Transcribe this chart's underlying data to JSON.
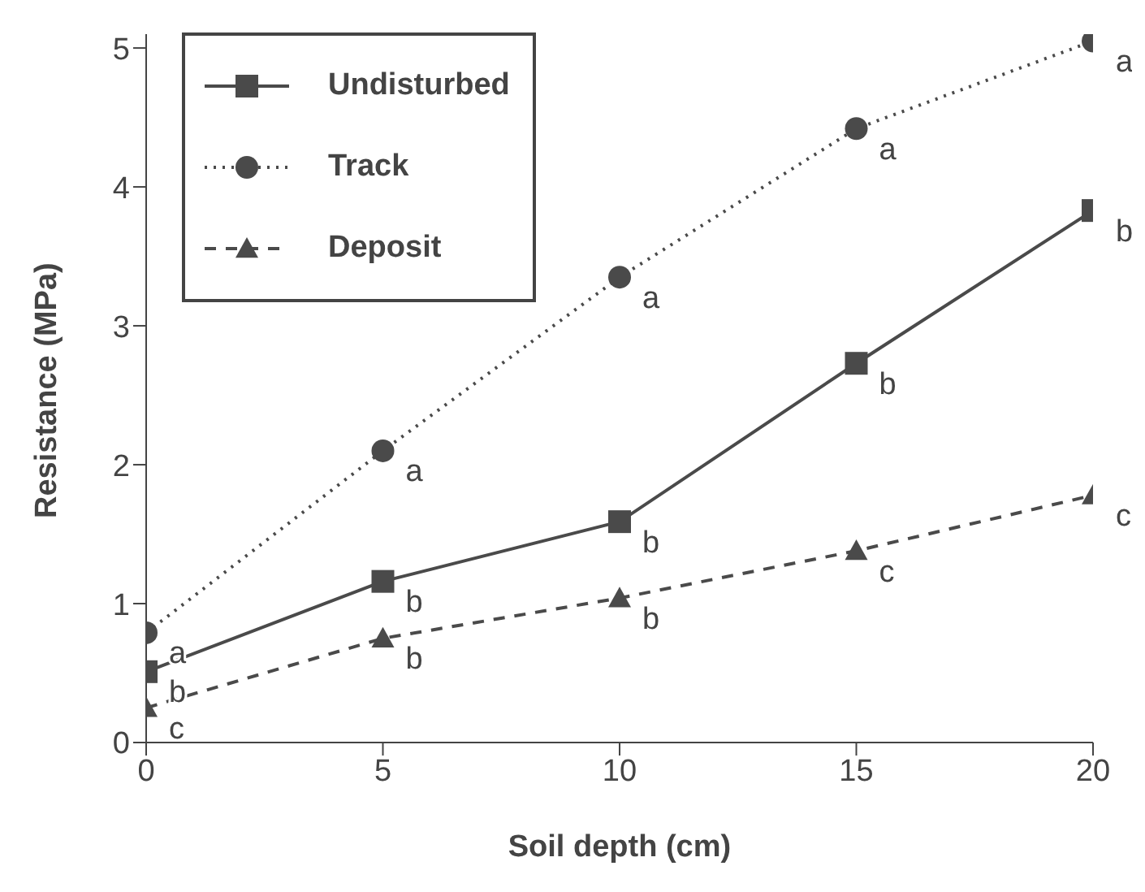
{
  "chart_data": {
    "type": "line",
    "xlabel": "Soil depth (cm)",
    "ylabel": "Resistance (MPa)",
    "x": [
      0,
      5,
      10,
      15,
      20
    ],
    "series": [
      {
        "name": "Undisturbed",
        "color": "#4a4a4a",
        "marker": "square",
        "line_style": "solid",
        "values": [
          0.51,
          1.16,
          1.59,
          2.73,
          3.83
        ]
      },
      {
        "name": "Track",
        "color": "#4a4a4a",
        "marker": "circle",
        "line_style": "dotted",
        "values": [
          0.79,
          2.1,
          3.35,
          4.42,
          5.05
        ]
      },
      {
        "name": "Deposit",
        "color": "#4a4a4a",
        "marker": "triangle",
        "line_style": "dashed",
        "values": [
          0.25,
          0.75,
          1.04,
          1.38,
          1.78
        ]
      }
    ],
    "xlim": [
      0,
      20
    ],
    "xticks": [
      0,
      5,
      10,
      15,
      20
    ],
    "ylim": [
      0,
      5.1
    ],
    "yticks": [
      0,
      1,
      2,
      3,
      4,
      5
    ],
    "grid": false,
    "legend": "top left",
    "annotations": [
      {
        "text": "b",
        "x": 0,
        "y": 0.51
      },
      {
        "text": "b",
        "x": 5,
        "y": 1.16
      },
      {
        "text": "b",
        "x": 10,
        "y": 1.59
      },
      {
        "text": "b",
        "x": 15,
        "y": 2.73
      },
      {
        "text": "b",
        "x": 20,
        "y": 3.83
      },
      {
        "text": "a",
        "x": 0,
        "y": 0.79
      },
      {
        "text": "a",
        "x": 5,
        "y": 2.1
      },
      {
        "text": "a",
        "x": 10,
        "y": 3.35
      },
      {
        "text": "a",
        "x": 15,
        "y": 4.42
      },
      {
        "text": "a",
        "x": 20,
        "y": 5.05
      },
      {
        "text": "c",
        "x": 0,
        "y": 0.25
      },
      {
        "text": "b",
        "x": 5,
        "y": 0.75
      },
      {
        "text": "b",
        "x": 10,
        "y": 1.04
      },
      {
        "text": "c",
        "x": 15,
        "y": 1.38
      },
      {
        "text": "c",
        "x": 20,
        "y": 1.78
      }
    ]
  }
}
